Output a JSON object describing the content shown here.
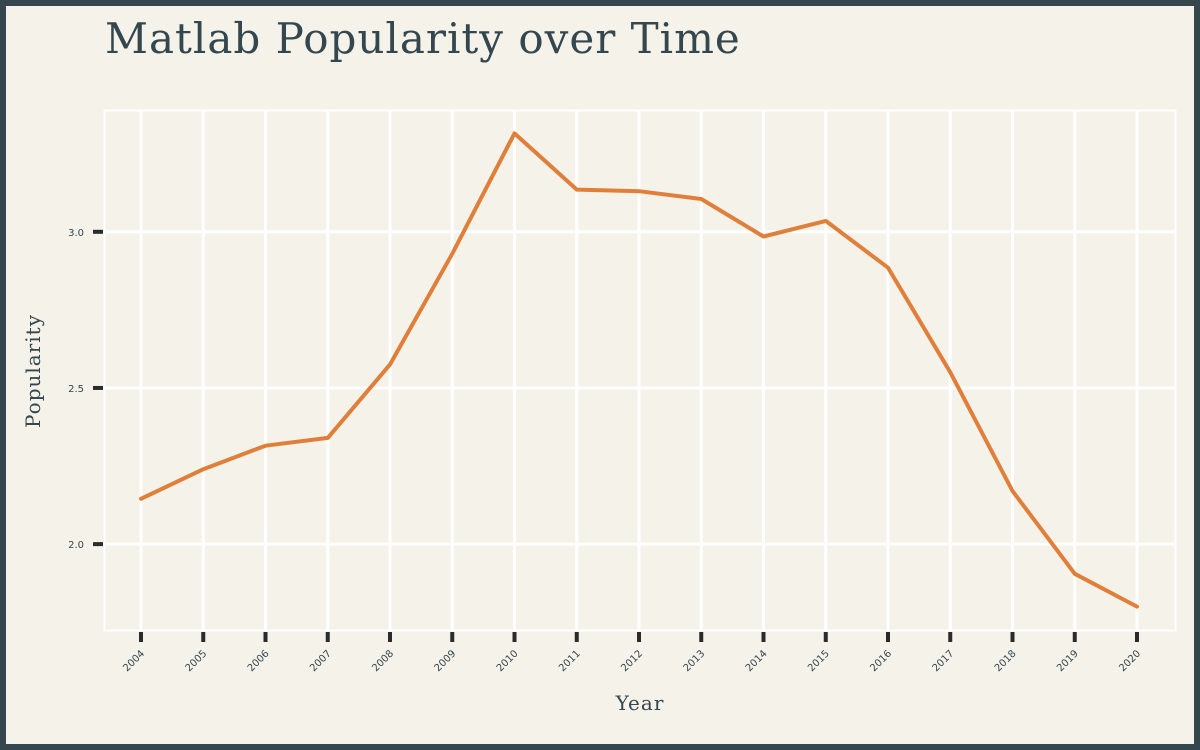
{
  "chart_data": {
    "type": "line",
    "title": "Matlab Popularity over Time",
    "xlabel": "Year",
    "ylabel": "Popularity",
    "x": [
      2004,
      2005,
      2006,
      2007,
      2008,
      2009,
      2010,
      2011,
      2012,
      2013,
      2014,
      2015,
      2016,
      2017,
      2018,
      2019,
      2020
    ],
    "x_tick_labels": [
      "2004",
      "2005",
      "2006",
      "2007",
      "2008",
      "2009",
      "2010",
      "2011",
      "2012",
      "2013",
      "2014",
      "2015",
      "2016",
      "2017",
      "2018",
      "2019",
      "2020"
    ],
    "series": [
      {
        "values": [
          2.145,
          2.24,
          2.315,
          2.34,
          2.575,
          2.93,
          3.315,
          3.135,
          3.13,
          3.105,
          2.985,
          3.035,
          2.885,
          2.55,
          2.17,
          1.905,
          1.8
        ]
      }
    ],
    "y_ticks": [
      2.0,
      2.5,
      3.0
    ],
    "y_tick_labels": [
      "2.0",
      "2.5",
      "3.0"
    ],
    "ylim": [
      1.725,
      3.39
    ],
    "grid": true,
    "legend": "none",
    "colors": {
      "line": "#e07f3a",
      "grid": "#ffffff",
      "text": "#34474f",
      "background": "#f5f2ea",
      "frame": "#34474f",
      "tick": "#2b2b2b"
    }
  }
}
